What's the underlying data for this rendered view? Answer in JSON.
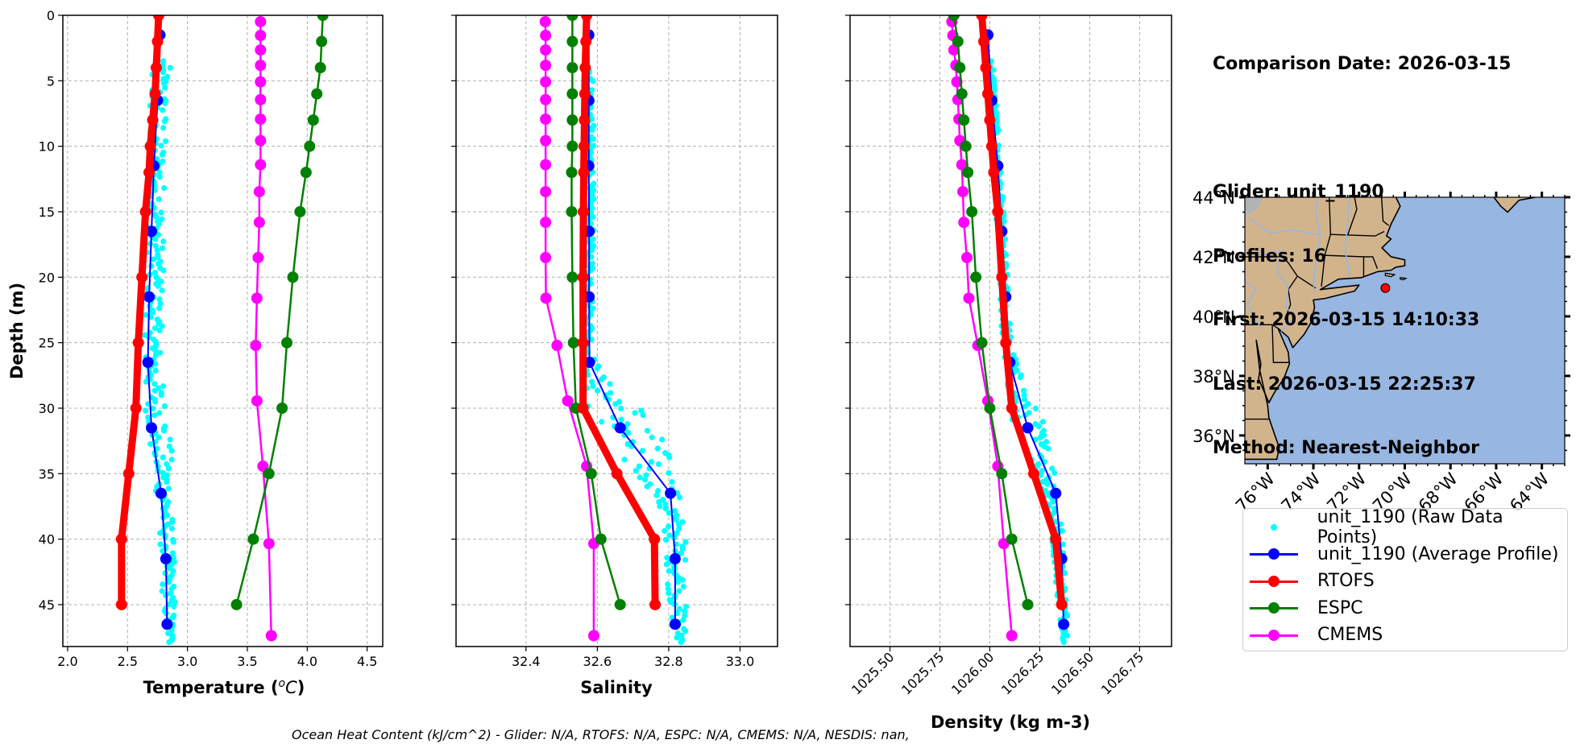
{
  "info": {
    "comparison_date": "Comparison Date: 2026-03-15",
    "glider": "Glider: unit_1190",
    "profiles": "Profiles: 16",
    "first": "First: 2026-03-15 14:10:33",
    "last": "Last: 2026-03-15 22:25:37",
    "method": "Method: Nearest-Neighbor"
  },
  "caption": "Ocean Heat Content (kJ/cm^2) - Glider: N/A,  RTOFS: N/A,  ESPC: N/A,  CMEMS: N/A,  NESDIS: nan,",
  "colors": {
    "raw": "#00ffff",
    "glider": "#0000ff",
    "rtofs": "#ff0000",
    "espc": "#008000",
    "cmems": "#ff00ff",
    "land": "#d2b48c",
    "ocean": "#97b6e1",
    "grid": "#b0b0b0"
  },
  "legend": [
    {
      "key": "raw",
      "label": "unit_1190 (Raw Data Points)",
      "style": "dot"
    },
    {
      "key": "glider",
      "label": "unit_1190 (Average Profile)",
      "style": "line"
    },
    {
      "key": "rtofs",
      "label": "RTOFS",
      "style": "line"
    },
    {
      "key": "espc",
      "label": "ESPC",
      "style": "line"
    },
    {
      "key": "cmems",
      "label": "CMEMS",
      "style": "line"
    }
  ],
  "chart_data": [
    {
      "type": "line",
      "title": "",
      "xlabel": "Temperature (°C)",
      "ylabel": "Depth (m)",
      "xlim": [
        1.96,
        4.63
      ],
      "ylim": [
        48.2,
        0
      ],
      "xticks": [
        2.0,
        2.5,
        3.0,
        3.5,
        4.0,
        4.5
      ],
      "xtick_labels": [
        "2.0",
        "2.5",
        "3.0",
        "3.5",
        "4.0",
        "4.5"
      ],
      "yticks": [
        0,
        5,
        10,
        15,
        20,
        25,
        30,
        35,
        40,
        45
      ],
      "grid": true,
      "raw_range": {
        "depth": [
          3.5,
          48.2
        ],
        "note": "scatter of glider raw points",
        "bands": [
          [
            3.5,
            2.68,
            2.86
          ],
          [
            10,
            2.66,
            2.82
          ],
          [
            20,
            2.66,
            2.8
          ],
          [
            27,
            2.63,
            2.78
          ],
          [
            32,
            2.66,
            2.87
          ],
          [
            38,
            2.76,
            2.88
          ],
          [
            45,
            2.79,
            2.9
          ],
          [
            48,
            2.84,
            2.88
          ]
        ]
      },
      "series": [
        {
          "name": "unit_1190 (Average Profile)",
          "key": "glider",
          "depth": [
            1.5,
            6.5,
            11.5,
            16.5,
            21.5,
            26.5,
            31.5,
            36.5,
            41.5,
            46.5
          ],
          "values": [
            2.77,
            2.75,
            2.72,
            2.7,
            2.68,
            2.67,
            2.7,
            2.78,
            2.82,
            2.83
          ]
        },
        {
          "name": "RTOFS",
          "key": "rtofs",
          "depth": [
            0,
            2,
            4,
            6,
            8,
            10,
            12,
            15,
            20,
            25,
            30,
            35,
            40,
            45
          ],
          "values": [
            2.76,
            2.75,
            2.74,
            2.73,
            2.71,
            2.69,
            2.68,
            2.65,
            2.62,
            2.59,
            2.57,
            2.51,
            2.45,
            2.45
          ]
        },
        {
          "name": "ESPC",
          "key": "espc",
          "depth": [
            0,
            2,
            4,
            6,
            8,
            10,
            12,
            15,
            20,
            25,
            30,
            35,
            40,
            45
          ],
          "values": [
            4.13,
            4.12,
            4.11,
            4.08,
            4.05,
            4.02,
            3.99,
            3.94,
            3.88,
            3.83,
            3.79,
            3.68,
            3.55,
            3.41
          ]
        },
        {
          "name": "CMEMS",
          "key": "cmems",
          "depth": [
            0.49,
            1.54,
            2.65,
            3.82,
            5.08,
            6.44,
            7.93,
            9.57,
            11.41,
            13.47,
            15.81,
            18.5,
            21.6,
            25.21,
            29.44,
            34.43,
            40.34,
            47.37
          ],
          "values": [
            3.61,
            3.61,
            3.61,
            3.61,
            3.61,
            3.61,
            3.61,
            3.61,
            3.61,
            3.6,
            3.6,
            3.59,
            3.58,
            3.57,
            3.58,
            3.63,
            3.68,
            3.7
          ]
        }
      ]
    },
    {
      "type": "line",
      "title": "",
      "xlabel": "Salinity",
      "ylabel": "",
      "xlim": [
        32.204,
        33.105
      ],
      "ylim": [
        48.2,
        0
      ],
      "xticks": [
        32.4,
        32.6,
        32.8,
        33.0
      ],
      "xtick_labels": [
        "32.4",
        "32.6",
        "32.8",
        "33.0"
      ],
      "yticks": [
        0,
        5,
        10,
        15,
        20,
        25,
        30,
        35,
        40,
        45
      ],
      "grid": true,
      "raw_range": {
        "depth": [
          3.5,
          48.2
        ],
        "bands": [
          [
            3.5,
            32.565,
            32.59
          ],
          [
            20,
            32.565,
            32.59
          ],
          [
            26,
            32.56,
            32.59
          ],
          [
            28,
            32.56,
            32.63
          ],
          [
            30,
            32.57,
            32.74
          ],
          [
            33,
            32.62,
            32.8
          ],
          [
            36,
            32.74,
            32.83
          ],
          [
            40,
            32.79,
            32.85
          ],
          [
            45,
            32.8,
            32.85
          ],
          [
            48,
            32.82,
            32.85
          ]
        ]
      },
      "series": [
        {
          "name": "unit_1190 (Average Profile)",
          "key": "glider",
          "depth": [
            1.5,
            6.5,
            11.5,
            16.5,
            21.5,
            26.5,
            31.5,
            36.5,
            41.5,
            46.5
          ],
          "values": [
            32.576,
            32.576,
            32.576,
            32.577,
            32.577,
            32.578,
            32.664,
            32.805,
            32.818,
            32.818
          ]
        },
        {
          "name": "RTOFS",
          "key": "rtofs",
          "depth": [
            0,
            2,
            4,
            6,
            8,
            10,
            12,
            15,
            20,
            25,
            30,
            35,
            40,
            45
          ],
          "values": [
            32.57,
            32.568,
            32.566,
            32.565,
            32.564,
            32.563,
            32.562,
            32.561,
            32.56,
            32.56,
            32.56,
            32.655,
            32.76,
            32.762
          ]
        },
        {
          "name": "ESPC",
          "key": "espc",
          "depth": [
            0,
            2,
            4,
            6,
            8,
            10,
            12,
            15,
            20,
            25,
            30,
            35,
            40,
            45
          ],
          "values": [
            32.53,
            32.53,
            32.53,
            32.53,
            32.53,
            32.53,
            32.528,
            32.528,
            32.53,
            32.533,
            32.54,
            32.583,
            32.61,
            32.664
          ]
        },
        {
          "name": "CMEMS",
          "key": "cmems",
          "depth": [
            0.49,
            1.54,
            2.65,
            3.82,
            5.08,
            6.44,
            7.93,
            9.57,
            11.41,
            13.47,
            15.81,
            18.5,
            21.6,
            25.21,
            29.44,
            34.43,
            40.34,
            47.37
          ],
          "values": [
            32.454,
            32.455,
            32.455,
            32.455,
            32.455,
            32.455,
            32.455,
            32.455,
            32.455,
            32.455,
            32.455,
            32.455,
            32.456,
            32.487,
            32.517,
            32.57,
            32.59,
            32.59
          ]
        }
      ]
    },
    {
      "type": "line",
      "title": "",
      "xlabel": "Density (kg m-3)",
      "ylabel": "",
      "xlim": [
        1025.3,
        1026.91
      ],
      "ylim": [
        48.2,
        0
      ],
      "xticks": [
        1025.5,
        1025.75,
        1026.0,
        1026.25,
        1026.5,
        1026.75
      ],
      "xtick_labels": [
        "1025.50",
        "1025.75",
        "1026.00",
        "1026.25",
        "1026.50",
        "1026.75"
      ],
      "yticks": [
        0,
        5,
        10,
        15,
        20,
        25,
        30,
        35,
        40,
        45
      ],
      "grid": true,
      "raw_range": {
        "depth": [
          3.5,
          48.2
        ],
        "bands": [
          [
            3.5,
            1025.99,
            1026.02
          ],
          [
            15,
            1026.03,
            1026.07
          ],
          [
            25,
            1026.06,
            1026.11
          ],
          [
            28,
            1026.08,
            1026.17
          ],
          [
            31,
            1026.11,
            1026.27
          ],
          [
            35,
            1026.24,
            1026.34
          ],
          [
            40,
            1026.31,
            1026.37
          ],
          [
            45,
            1026.34,
            1026.39
          ],
          [
            48,
            1026.37,
            1026.4
          ]
        ]
      },
      "series": [
        {
          "name": "unit_1190 (Average Profile)",
          "key": "glider",
          "depth": [
            1.5,
            6.5,
            11.5,
            16.5,
            21.5,
            26.5,
            31.5,
            36.5,
            41.5,
            46.5
          ],
          "values": [
            1025.99,
            1026.01,
            1026.04,
            1026.06,
            1026.08,
            1026.1,
            1026.19,
            1026.33,
            1026.36,
            1026.37
          ]
        },
        {
          "name": "RTOFS",
          "key": "rtofs",
          "depth": [
            0,
            2,
            4,
            6,
            8,
            10,
            12,
            15,
            20,
            25,
            30,
            35,
            40,
            45
          ],
          "values": [
            1025.96,
            1025.97,
            1025.98,
            1025.99,
            1026.0,
            1026.01,
            1026.02,
            1026.04,
            1026.06,
            1026.08,
            1026.11,
            1026.22,
            1026.33,
            1026.36
          ]
        },
        {
          "name": "ESPC",
          "key": "espc",
          "depth": [
            0,
            2,
            4,
            6,
            8,
            10,
            12,
            15,
            20,
            25,
            30,
            35,
            40,
            45
          ],
          "values": [
            1025.82,
            1025.84,
            1025.85,
            1025.86,
            1025.87,
            1025.88,
            1025.89,
            1025.91,
            1025.93,
            1025.96,
            1026.0,
            1026.06,
            1026.11,
            1026.19
          ]
        },
        {
          "name": "CMEMS",
          "key": "cmems",
          "depth": [
            0.49,
            1.54,
            2.65,
            3.82,
            5.08,
            6.44,
            7.93,
            9.57,
            11.41,
            13.47,
            15.81,
            18.5,
            21.6,
            25.21,
            29.44,
            34.43,
            40.34,
            47.37
          ],
          "values": [
            1025.81,
            1025.815,
            1025.82,
            1025.83,
            1025.835,
            1025.84,
            1025.845,
            1025.85,
            1025.86,
            1025.865,
            1025.87,
            1025.885,
            1025.895,
            1025.94,
            1025.99,
            1026.04,
            1026.07,
            1026.11
          ]
        }
      ]
    },
    {
      "type": "map",
      "title": "",
      "lon_range": [
        -77.0,
        -63.0
      ],
      "lat_range": [
        35.05,
        44.0
      ],
      "lat_ticks": [
        44,
        42,
        40,
        38,
        36
      ],
      "lat_tick_labels": [
        "44°N",
        "42°N",
        "40°N",
        "38°N",
        "36°N"
      ],
      "lon_ticks": [
        -76,
        -74,
        -72,
        -70,
        -68,
        -66,
        -64
      ],
      "lon_tick_labels": [
        "76°W",
        "74°W",
        "72°W",
        "70°W",
        "68°W",
        "66°W",
        "64°W"
      ],
      "marker": {
        "name": "glider-location",
        "lon": -70.85,
        "lat": 40.95
      }
    }
  ]
}
